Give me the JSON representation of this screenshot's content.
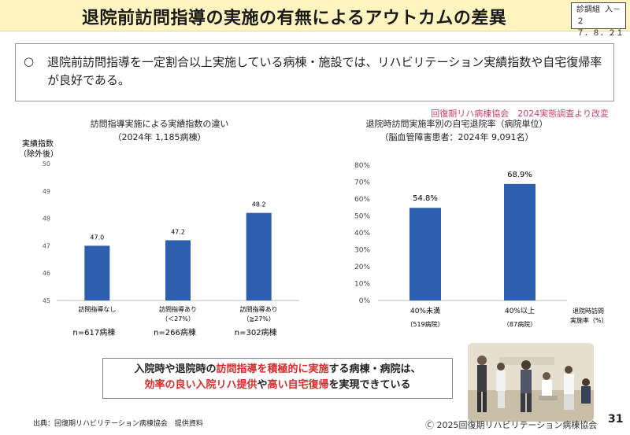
{
  "header": {
    "title": "退院前訪問指導の実施の有無によるアウトカムの差異",
    "doc_tag_line1": "診調組 入－２",
    "doc_tag_line2": "７．８．２１"
  },
  "summary": {
    "bullet": "○",
    "text": "退院前訪問指導を一定割合以上実施している病棟・施設では、リハビリテーション実績指数や自宅復帰率が良好である。"
  },
  "source_note": "回復期リハ病棟協会　2024実態調査より改変",
  "left_chart": {
    "title_line1": "訪問指導実施による実績指数の違い",
    "title_line2": "（2024年 1,185病棟）"
  },
  "right_chart": {
    "title_line1": "退院時訪問実施率別の自宅退院率（病院単位）",
    "title_line2": "（脳血管障害患者：2024年 9,091名）"
  },
  "chart_data": [
    {
      "type": "bar",
      "title": "訪問指導実施による実績指数の違い",
      "subtitle": "（2024年 1,185病棟）",
      "ylabel": "実績指数（除外後）",
      "ylabel_line1": "実績指数",
      "ylabel_line2": "（除外後）",
      "ylim": [
        45,
        50
      ],
      "yticks": [
        "45",
        "46",
        "47",
        "48",
        "49",
        "50"
      ],
      "categories": [
        {
          "line1": "訪問指導なし",
          "line2": ""
        },
        {
          "line1": "訪問指導あり",
          "line2": "（＜27%）"
        },
        {
          "line1": "訪問指導あり",
          "line2": "（≧27%）"
        }
      ],
      "values": [
        47.0,
        47.2,
        48.2
      ],
      "value_labels": [
        "47.0",
        "47.2",
        "48.2"
      ],
      "n_labels": [
        "n=617病棟",
        "n=266病棟",
        "n=302病棟"
      ],
      "color": "#2e5fae"
    },
    {
      "type": "bar",
      "title": "退院時訪問実施率別の自宅退院率（病院単位）",
      "subtitle": "（脳血管障害患者：2024年 9,091名）",
      "ylim": [
        0,
        80
      ],
      "yticks": [
        "0%",
        "10%",
        "20%",
        "30%",
        "40%",
        "50%",
        "60%",
        "70%",
        "80%"
      ],
      "categories": [
        {
          "line1": "40%未満",
          "line2": "（519病院）"
        },
        {
          "line1": "40%以上",
          "line2": "（87病院）"
        }
      ],
      "values": [
        54.8,
        68.9
      ],
      "value_labels": [
        "54.8%",
        "68.9%"
      ],
      "xlabel_line1": "退院時訪問",
      "xlabel_line2": "実施率（%）",
      "color": "#2e5fae"
    }
  ],
  "bottom_message": {
    "l1_a": "入院時や退院時の",
    "l1_b": "訪問指導を積極的に実施",
    "l1_c": "する病棟・病院は、",
    "l2_a": "効率の良い入院リハ提供",
    "l2_b": "や",
    "l2_c": "高い自宅復帰",
    "l2_d": "を実現できている"
  },
  "footer": {
    "source": "出典：回復期リハビリテーション病棟協会　提供資料",
    "copyright": "Ⓒ 2025回復期リハビリテーション病棟協会",
    "page_number": "31"
  }
}
